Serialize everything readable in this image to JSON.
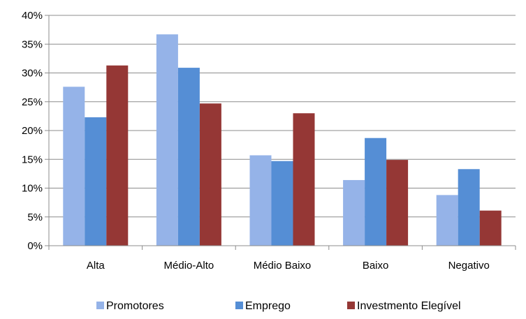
{
  "chart_data": {
    "type": "bar",
    "title": "",
    "xlabel": "",
    "ylabel": "",
    "categories": [
      "Alta",
      "Médio-Alto",
      "Médio Baixo",
      "Baixo",
      "Negativo"
    ],
    "ylim": [
      0,
      40
    ],
    "y_ticks": [
      "0%",
      "5%",
      "10%",
      "15%",
      "20%",
      "25%",
      "30%",
      "35%",
      "40%"
    ],
    "grid": true,
    "legend_position": "bottom",
    "series": [
      {
        "name": "Promotores",
        "color": "#95B3E8",
        "values": [
          27.6,
          36.7,
          15.7,
          11.4,
          8.8
        ]
      },
      {
        "name": "Emprego",
        "color": "#558ED5",
        "values": [
          22.3,
          30.9,
          14.7,
          18.7,
          13.3
        ]
      },
      {
        "name": "Investmento Elegível",
        "color": "#953735",
        "values": [
          31.3,
          24.7,
          23.0,
          14.9,
          6.1
        ]
      }
    ]
  }
}
